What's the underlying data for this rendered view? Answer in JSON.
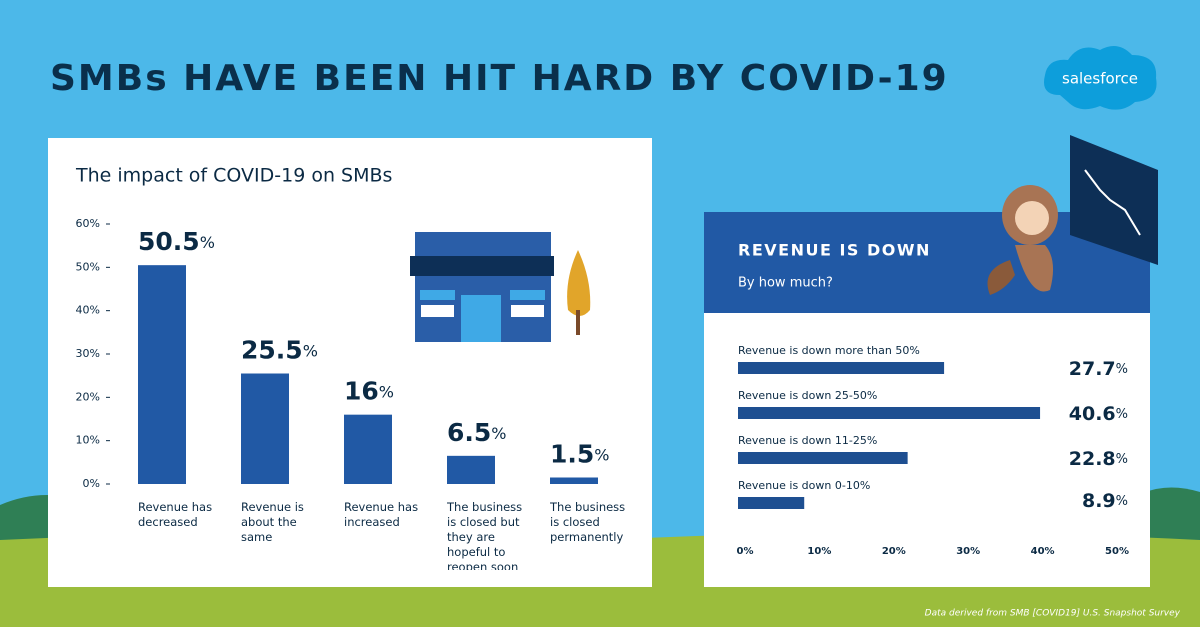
{
  "title": "SMBs HAVE BEEN HIT HARD BY COVID-19",
  "brand": "salesforce",
  "source": "Data derived from SMB [COVID19] U.S. Snapshot Survey",
  "chart_data": [
    {
      "type": "bar",
      "title": "The impact of COVID-19 on SMBs",
      "categories": [
        "Revenue has decreased",
        "Revenue is about the same",
        "Revenue has increased",
        "The business is closed but they are hopeful to reopen soon",
        "The business is closed permanently"
      ],
      "values": [
        50.5,
        25.5,
        16,
        6.5,
        1.5
      ],
      "value_labels": [
        "50.5%",
        "25.5%",
        "16%",
        "6.5%",
        "1.5%"
      ],
      "color": "#2159a5",
      "ylim": [
        0,
        60
      ],
      "yticks": [
        {
          "value": 0,
          "label": "0%"
        },
        {
          "value": 10,
          "label": "10%"
        },
        {
          "value": 20,
          "label": "20%"
        },
        {
          "value": 30,
          "label": "30%"
        },
        {
          "value": 40,
          "label": "40%"
        },
        {
          "value": 50,
          "label": "50%"
        },
        {
          "value": 60,
          "label": "60%"
        }
      ]
    },
    {
      "type": "hbar",
      "title": "REVENUE IS DOWN",
      "subtitle": "By how much?",
      "categories": [
        "Revenue is down more than 50%",
        "Revenue is down 25-50%",
        "Revenue is down 11-25%",
        "Revenue is down 0-10%"
      ],
      "values": [
        27.7,
        40.6,
        22.8,
        8.9
      ],
      "value_labels": [
        "27.7%",
        "40.6%",
        "22.8%",
        "8.9%"
      ],
      "color": "#1e4f91",
      "xlim": [
        0,
        50
      ],
      "xticks": [
        {
          "value": 0,
          "label": "0%"
        },
        {
          "value": 10,
          "label": "10%"
        },
        {
          "value": 20,
          "label": "20%"
        },
        {
          "value": 30,
          "label": "30%"
        },
        {
          "value": 40,
          "label": "40%"
        },
        {
          "value": 50,
          "label": "50%"
        }
      ]
    }
  ]
}
